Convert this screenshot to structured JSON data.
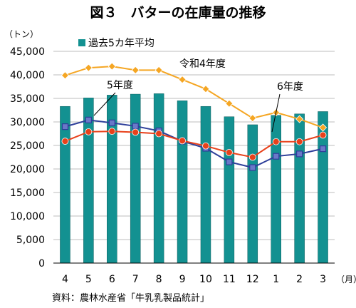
{
  "chart_data": {
    "type": "bar",
    "title": "図３　バターの在庫量の推移",
    "y_unit": "（トン）",
    "x_unit": "（月）",
    "source": "資料：農林水産省「牛乳乳製品統計」",
    "categories": [
      "4",
      "5",
      "6",
      "7",
      "8",
      "9",
      "10",
      "11",
      "12",
      "1",
      "2",
      "3"
    ],
    "ylim": [
      0,
      45000
    ],
    "yticks": [
      "0",
      "5,000",
      "10,000",
      "15,000",
      "20,000",
      "25,000",
      "30,000",
      "35,000",
      "40,000",
      "45,000"
    ],
    "grid": true,
    "legend_position": "top-left",
    "series": [
      {
        "name": "過去5カ年平均",
        "kind": "bar",
        "color": "#139191",
        "values": [
          33300,
          35100,
          35700,
          35900,
          36000,
          34500,
          33300,
          31100,
          29400,
          31400,
          31700,
          32200
        ]
      },
      {
        "name": "令和4年度",
        "kind": "line",
        "color": "#f5a623",
        "marker": "diamond",
        "values": [
          39900,
          41500,
          41800,
          41000,
          41000,
          39000,
          37000,
          33900,
          30800,
          32000,
          30600,
          28800
        ]
      },
      {
        "name": "5年度",
        "kind": "line",
        "color": "#2e3f9a",
        "marker": "square",
        "values": [
          29000,
          30400,
          29800,
          29100,
          28100,
          25900,
          24400,
          21500,
          20300,
          22700,
          23200,
          24300
        ]
      },
      {
        "name": "6年度",
        "kind": "line",
        "color": "#e8411b",
        "marker": "circle",
        "values": [
          25900,
          27900,
          28000,
          27800,
          27500,
          26000,
          24900,
          23500,
          22500,
          25800,
          25800,
          27200
        ]
      }
    ]
  }
}
